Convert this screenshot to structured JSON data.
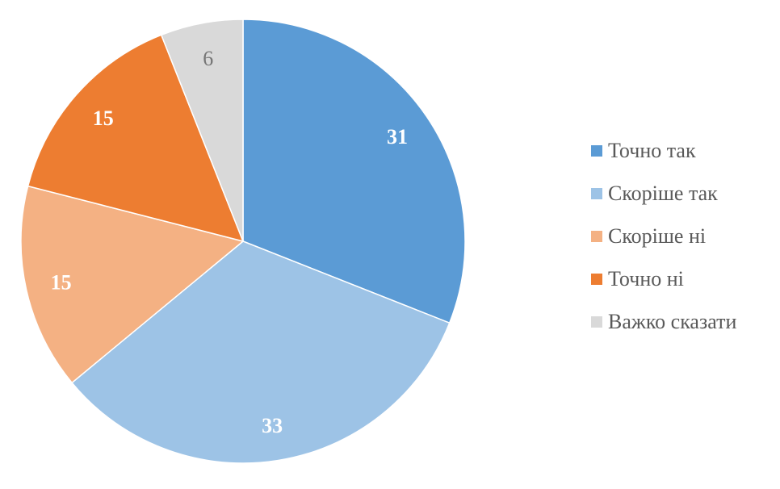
{
  "chart_data": {
    "type": "pie",
    "categories": [
      "Точно так",
      "Скоріше так",
      "Скоріше ні",
      "Точно ні",
      "Важко сказати"
    ],
    "values": [
      31,
      33,
      15,
      15,
      6
    ],
    "data_labels": [
      "31",
      "33",
      "15",
      "15",
      "6"
    ],
    "colors": [
      "#5B9BD5",
      "#9DC3E6",
      "#F4B183",
      "#ED7D31",
      "#D9D9D9"
    ],
    "label_colors": [
      "#FFFFFF",
      "#FFFFFF",
      "#FFFFFF",
      "#FFFFFF",
      "#767676"
    ],
    "start": "top",
    "direction": "clockwise",
    "legend_position": "right"
  }
}
